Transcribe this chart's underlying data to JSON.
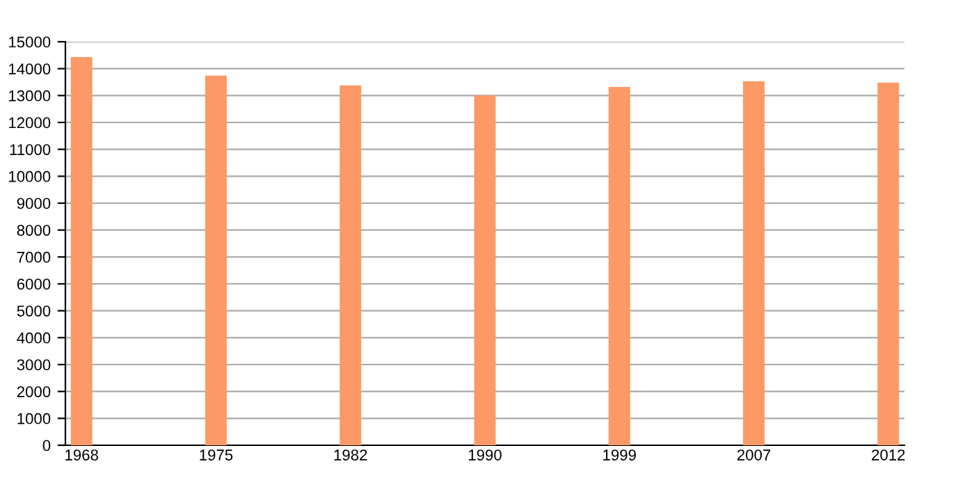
{
  "chart_data": {
    "type": "bar",
    "categories": [
      "1968",
      "1975",
      "1982",
      "1990",
      "1999",
      "2007",
      "2012"
    ],
    "values": [
      14430,
      13740,
      13380,
      13000,
      13320,
      13530,
      13480
    ],
    "color": "#fc9966",
    "ylim": [
      0,
      15000
    ],
    "yticks": [
      0,
      1000,
      2000,
      3000,
      4000,
      5000,
      6000,
      7000,
      8000,
      9000,
      10000,
      11000,
      12000,
      13000,
      14000,
      15000
    ],
    "grid": "y"
  }
}
